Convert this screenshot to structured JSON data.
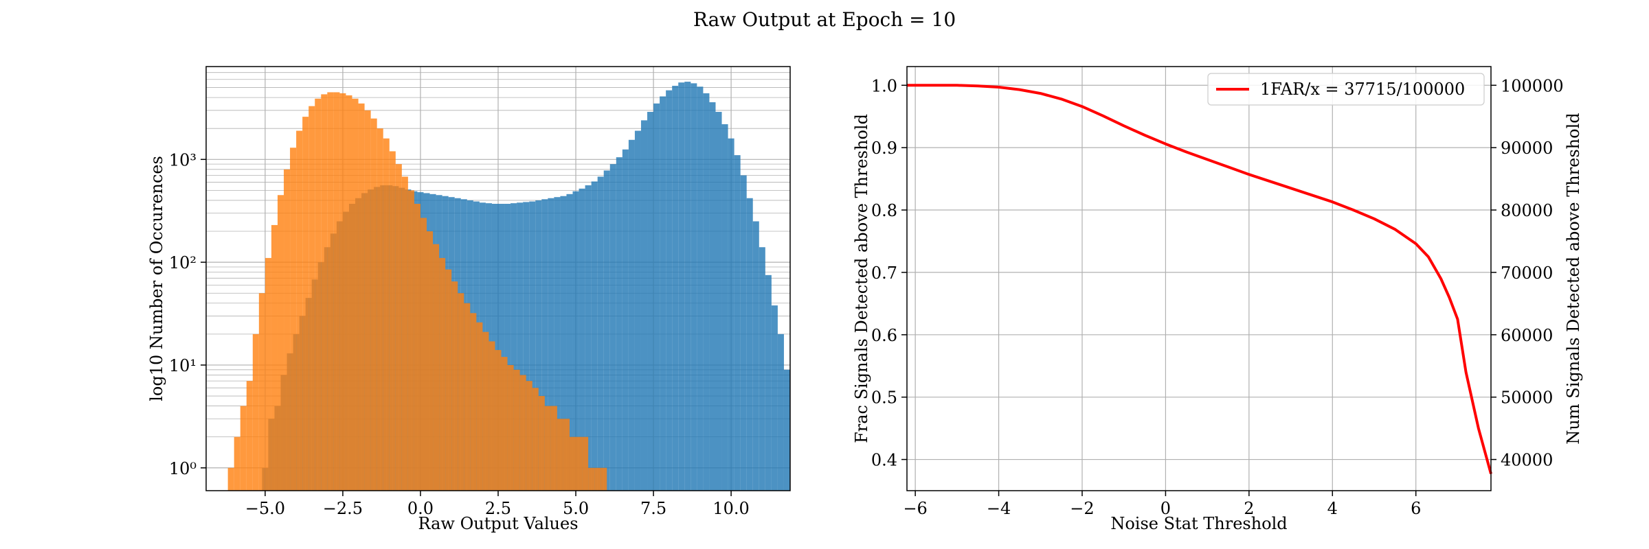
{
  "figure": {
    "suptitle": "Raw Output at Epoch = 10"
  },
  "colors": {
    "signal": "#1f77b4",
    "noise": "#ff7f0e",
    "overlap": "#e0822e",
    "curve": "#ff0000",
    "grid": "#b0b0b0"
  },
  "chart_data": [
    {
      "type": "bar",
      "subtype": "histogram",
      "xlabel": "Raw Output Values",
      "ylabel": "log10 Number of Occurences",
      "xlim": [
        -6.9,
        11.9
      ],
      "ylim": [
        0.6,
        8000
      ],
      "yscale": "log",
      "grid": true,
      "xticks": [
        -5.0,
        -2.5,
        0.0,
        2.5,
        5.0,
        7.5,
        10.0
      ],
      "xtick_labels": [
        "−5.0",
        "−2.5",
        "0.0",
        "2.5",
        "5.0",
        "7.5",
        "10.0"
      ],
      "yticks": [
        1,
        10,
        100,
        1000
      ],
      "ytick_labels": [
        "10⁰",
        "10¹",
        "10²",
        "10³"
      ],
      "bin_width": 0.2,
      "series": [
        {
          "color_key": "signal",
          "bin_start": -5.1,
          "values": [
            1,
            3,
            4,
            8,
            13,
            20,
            30,
            45,
            68,
            100,
            140,
            190,
            250,
            310,
            370,
            420,
            470,
            510,
            540,
            560,
            560,
            550,
            530,
            510,
            490,
            480,
            470,
            460,
            450,
            440,
            430,
            420,
            410,
            400,
            390,
            380,
            375,
            370,
            370,
            370,
            375,
            380,
            385,
            390,
            400,
            410,
            420,
            430,
            440,
            460,
            490,
            520,
            560,
            610,
            680,
            780,
            900,
            1050,
            1250,
            1550,
            1900,
            2400,
            2900,
            3500,
            4100,
            4700,
            5200,
            5600,
            5700,
            5500,
            5100,
            4400,
            3600,
            2900,
            2200,
            1600,
            1100,
            700,
            420,
            250,
            140,
            75,
            38,
            20,
            9
          ]
        },
        {
          "color_key": "noise",
          "bin_start": -6.2,
          "values": [
            1,
            2,
            4,
            7,
            20,
            50,
            110,
            230,
            450,
            800,
            1300,
            1900,
            2600,
            3300,
            3900,
            4300,
            4500,
            4500,
            4400,
            4200,
            3900,
            3500,
            3000,
            2500,
            2000,
            1600,
            1200,
            900,
            680,
            500,
            370,
            270,
            200,
            150,
            110,
            85,
            65,
            50,
            40,
            32,
            26,
            21,
            17,
            14,
            12,
            10,
            9,
            8,
            7,
            6,
            5,
            4,
            4,
            3,
            3,
            2,
            2,
            2,
            1,
            1,
            1
          ]
        }
      ]
    },
    {
      "type": "line",
      "xlabel": "Noise Stat Threshold",
      "ylabel": "Frac Signals Detected above Threshold",
      "ylabel_right": "Num Signals Detected above Threshold",
      "xlim": [
        -6.2,
        7.8
      ],
      "ylim": [
        0.35,
        1.03
      ],
      "ylim_right": [
        35000,
        103000
      ],
      "grid": true,
      "legend_position": "top-right",
      "xticks": [
        -6,
        -4,
        -2,
        0,
        2,
        4,
        6
      ],
      "xtick_labels": [
        "−6",
        "−4",
        "−2",
        "0",
        "2",
        "4",
        "6"
      ],
      "yticks": [
        0.4,
        0.5,
        0.6,
        0.7,
        0.8,
        0.9,
        1.0
      ],
      "ytick_labels": [
        "0.4",
        "0.5",
        "0.6",
        "0.7",
        "0.8",
        "0.9",
        "1.0"
      ],
      "yticks_right": [
        40000,
        50000,
        60000,
        70000,
        80000,
        90000,
        100000
      ],
      "ytick_labels_right": [
        "40000",
        "50000",
        "60000",
        "70000",
        "80000",
        "90000",
        "100000"
      ],
      "series": [
        {
          "name": "1FAR/x = 37715/100000",
          "x": [
            -6.2,
            -5,
            -4.5,
            -4,
            -3.5,
            -3,
            -2.5,
            -2,
            -1.5,
            -1,
            -0.5,
            0,
            0.5,
            1,
            1.5,
            2,
            2.5,
            3,
            3.5,
            4,
            4.5,
            5,
            5.5,
            6,
            6.3,
            6.6,
            6.8,
            7.0,
            7.2,
            7.5,
            7.8
          ],
          "y": [
            1.0,
            1.0,
            0.999,
            0.997,
            0.993,
            0.987,
            0.978,
            0.966,
            0.951,
            0.935,
            0.92,
            0.906,
            0.893,
            0.881,
            0.869,
            0.857,
            0.846,
            0.835,
            0.824,
            0.813,
            0.8,
            0.786,
            0.769,
            0.746,
            0.725,
            0.69,
            0.66,
            0.625,
            0.54,
            0.45,
            0.377
          ]
        }
      ]
    }
  ]
}
